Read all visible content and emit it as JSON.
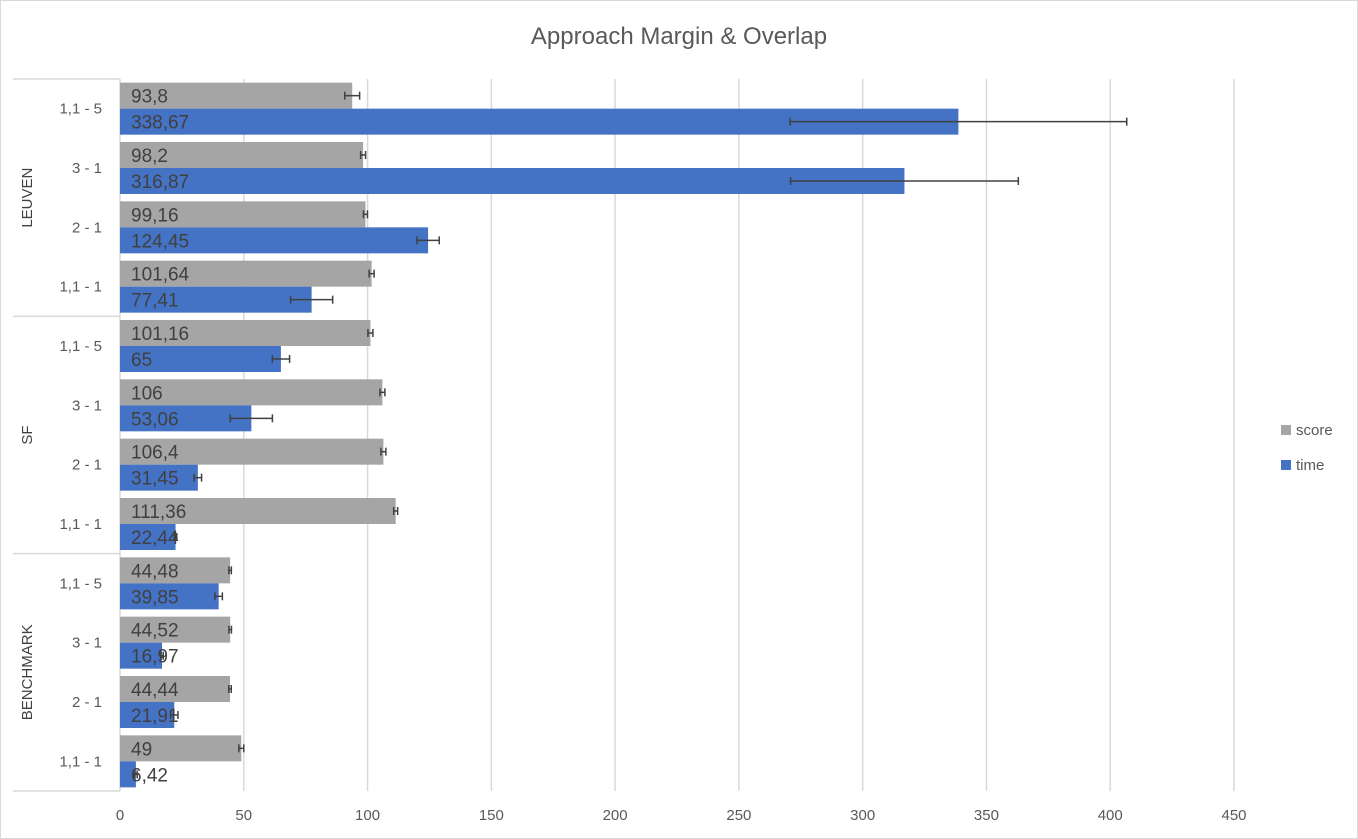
{
  "chart_data": {
    "type": "bar",
    "orientation": "horizontal",
    "title": "Approach Margin & Overlap",
    "groups": [
      {
        "name": "LEUVEN",
        "categories": [
          "1,1 - 5",
          "3 - 1",
          "2 - 1",
          "1,1 - 1"
        ]
      },
      {
        "name": "SF",
        "categories": [
          "1,1 - 5",
          "3 - 1",
          "2 - 1",
          "1,1 - 1"
        ]
      },
      {
        "name": "BENCHMARK",
        "categories": [
          "1,1 - 5",
          "3 - 1",
          "2 - 1",
          "1,1 - 1"
        ]
      }
    ],
    "series": [
      {
        "name": "score",
        "color": "#a5a5a5",
        "values": [
          93.8,
          98.2,
          99.16,
          101.64,
          101.16,
          106,
          106.4,
          111.36,
          44.48,
          44.52,
          44.44,
          49
        ],
        "labels": [
          "93,8",
          "98,2",
          "99,16",
          "101,64",
          "101,16",
          "106",
          "106,4",
          "111,36",
          "44,48",
          "44,52",
          "44,44",
          "49"
        ],
        "errors": [
          3,
          1,
          0.8,
          1,
          1,
          1,
          1,
          0.8,
          0.5,
          0.5,
          0.5,
          1
        ]
      },
      {
        "name": "time",
        "color": "#4472c4",
        "values": [
          338.67,
          316.87,
          124.45,
          77.41,
          65,
          53.06,
          31.45,
          22.44,
          39.85,
          16.97,
          21.91,
          6.42
        ],
        "labels": [
          "338,67",
          "316,87",
          "124,45",
          "77,41",
          "65",
          "53,06",
          "31,45",
          "22,44",
          "39,85",
          "16,97",
          "21,91",
          "6,42"
        ],
        "errors": [
          68,
          46,
          4.5,
          8.5,
          3.5,
          8.5,
          1.5,
          0.5,
          1.5,
          0.5,
          1.5,
          0.5
        ]
      }
    ],
    "xlim": [
      0,
      450
    ],
    "xticks": [
      0,
      50,
      100,
      150,
      200,
      250,
      300,
      350,
      400,
      450
    ],
    "grid": true,
    "legend": "right"
  }
}
